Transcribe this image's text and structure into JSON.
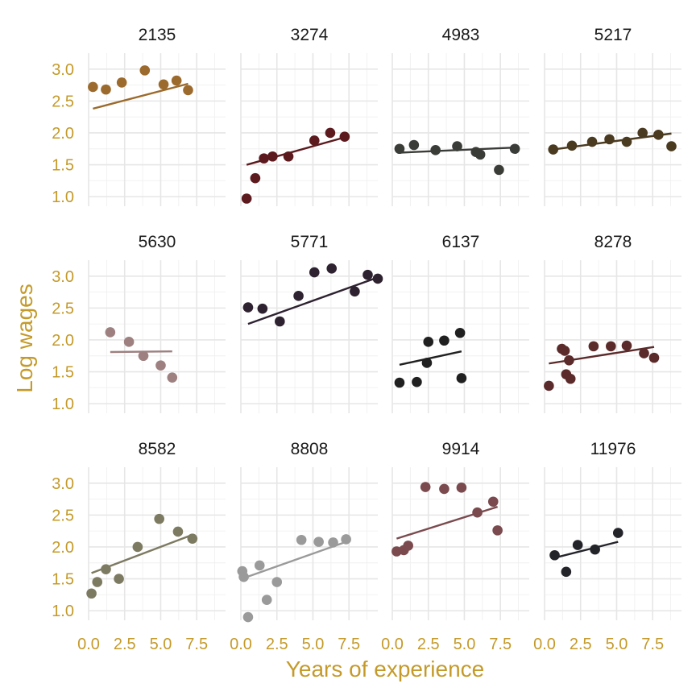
{
  "chart_data": {
    "type": "scatter",
    "facets": "small-multiples",
    "xlabel": "Years of experience",
    "ylabel": "Log wages",
    "xlim": [
      0,
      9.5
    ],
    "ylim": [
      0.85,
      3.25
    ],
    "x_ticks": [
      "0.0",
      "2.5",
      "5.0",
      "7.5"
    ],
    "y_ticks": [
      "1.0",
      "1.5",
      "2.0",
      "2.5",
      "3.0"
    ],
    "x_tick_values": [
      0,
      2.5,
      5,
      7.5
    ],
    "y_tick_values": [
      1.0,
      1.5,
      2.0,
      2.5,
      3.0
    ],
    "grid": true,
    "legend": "none",
    "panels": [
      {
        "id": "2135",
        "color": "#9b6a2c",
        "x": [
          0.3,
          1.2,
          2.3,
          3.9,
          5.2,
          6.1,
          6.9
        ],
        "y": [
          2.72,
          2.68,
          2.79,
          2.98,
          2.76,
          2.82,
          2.67
        ],
        "fit": [
          [
            0.3,
            2.38
          ],
          [
            6.9,
            2.77
          ]
        ]
      },
      {
        "id": "3274",
        "color": "#5c1a1e",
        "x": [
          0.4,
          1.0,
          1.6,
          2.2,
          3.3,
          5.1,
          6.2,
          7.2
        ],
        "y": [
          0.97,
          1.29,
          1.6,
          1.63,
          1.63,
          1.88,
          2.0,
          1.94
        ],
        "fit": [
          [
            0.4,
            1.5
          ],
          [
            7.2,
            1.93
          ]
        ]
      },
      {
        "id": "4983",
        "color": "#3a3c38",
        "x": [
          0.5,
          1.5,
          3.0,
          4.5,
          5.8,
          6.1,
          7.4,
          8.5
        ],
        "y": [
          1.75,
          1.81,
          1.73,
          1.79,
          1.7,
          1.66,
          1.42,
          1.75
        ],
        "fit": [
          [
            0.5,
            1.69
          ],
          [
            8.5,
            1.77
          ]
        ]
      },
      {
        "id": "5217",
        "color": "#4a3a1f",
        "x": [
          0.6,
          1.9,
          3.3,
          4.5,
          5.7,
          6.8,
          7.9,
          8.8
        ],
        "y": [
          1.74,
          1.8,
          1.86,
          1.9,
          1.86,
          2.0,
          1.97,
          1.79
        ],
        "fit": [
          [
            0.6,
            1.74
          ],
          [
            8.8,
            1.99
          ]
        ]
      },
      {
        "id": "5630",
        "color": "#9e8080",
        "x": [
          1.5,
          2.8,
          3.8,
          5.0,
          5.8
        ],
        "y": [
          2.12,
          1.97,
          1.75,
          1.6,
          1.41
        ],
        "fit": [
          [
            1.5,
            1.81
          ],
          [
            5.8,
            1.82
          ]
        ]
      },
      {
        "id": "5771",
        "color": "#2e2230",
        "x": [
          0.5,
          1.5,
          2.7,
          4.0,
          5.1,
          6.3,
          7.9,
          8.8,
          9.5
        ],
        "y": [
          2.51,
          2.49,
          2.29,
          2.69,
          3.06,
          3.12,
          2.76,
          3.02,
          2.96
        ],
        "fit": [
          [
            0.5,
            2.25
          ],
          [
            9.5,
            2.98
          ]
        ]
      },
      {
        "id": "6137",
        "color": "#202020",
        "x": [
          0.5,
          1.7,
          2.4,
          2.5,
          3.6,
          4.7,
          4.8
        ],
        "y": [
          1.33,
          1.34,
          1.64,
          1.97,
          1.99,
          2.11,
          1.4
        ],
        "fit": [
          [
            0.5,
            1.61
          ],
          [
            4.8,
            1.82
          ]
        ]
      },
      {
        "id": "8278",
        "color": "#5b2a2a",
        "x": [
          0.3,
          1.2,
          1.4,
          1.5,
          1.7,
          1.8,
          3.4,
          4.6,
          5.7,
          6.9,
          7.6
        ],
        "y": [
          1.28,
          1.86,
          1.83,
          1.46,
          1.68,
          1.39,
          1.9,
          1.9,
          1.91,
          1.79,
          1.72
        ],
        "fit": [
          [
            0.3,
            1.63
          ],
          [
            7.6,
            1.89
          ]
        ]
      },
      {
        "id": "8582",
        "color": "#7d7a62",
        "x": [
          0.2,
          0.6,
          1.2,
          2.1,
          3.4,
          4.9,
          6.2,
          7.2
        ],
        "y": [
          1.27,
          1.45,
          1.65,
          1.5,
          2.0,
          2.44,
          2.24,
          2.13
        ],
        "fit": [
          [
            0.2,
            1.59
          ],
          [
            7.2,
            2.19
          ]
        ]
      },
      {
        "id": "8808",
        "color": "#9a9a9a",
        "x": [
          0.1,
          0.2,
          0.5,
          1.3,
          1.8,
          2.5,
          4.2,
          5.4,
          6.4,
          7.3
        ],
        "y": [
          1.62,
          1.53,
          0.9,
          1.71,
          1.17,
          1.45,
          2.11,
          2.08,
          2.07,
          2.12
        ],
        "fit": [
          [
            0.3,
            1.52
          ],
          [
            7.3,
            2.08
          ]
        ]
      },
      {
        "id": "9914",
        "color": "#7a4a4e",
        "x": [
          0.3,
          0.8,
          1.1,
          2.3,
          3.6,
          4.8,
          5.9,
          7.0,
          7.3
        ],
        "y": [
          1.93,
          1.95,
          2.02,
          2.94,
          2.91,
          2.93,
          2.54,
          2.71,
          2.26
        ],
        "fit": [
          [
            0.3,
            2.13
          ],
          [
            7.3,
            2.63
          ]
        ]
      },
      {
        "id": "11976",
        "color": "#23232a",
        "x": [
          0.7,
          1.5,
          2.3,
          3.5,
          5.1
        ],
        "y": [
          1.87,
          1.61,
          2.03,
          1.96,
          2.22
        ],
        "fit": [
          [
            0.7,
            1.83
          ],
          [
            5.1,
            2.08
          ]
        ]
      }
    ]
  }
}
